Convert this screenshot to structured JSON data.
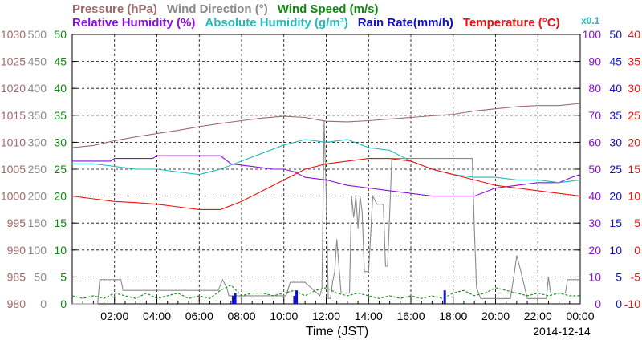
{
  "chart_data": {
    "type": "line",
    "legend_row1": [
      {
        "text": "Pressure (hPa)",
        "color": "#a06a6a"
      },
      {
        "text": "Wind Direction (°)",
        "color": "#8a8a8a"
      },
      {
        "text": "Wind Speed (m/s)",
        "color": "#118811"
      }
    ],
    "legend_row2": [
      {
        "text": "Relative Humidity (%)",
        "color": "#8a0fe0"
      },
      {
        "text": "Absolute Humidity (g/m³)",
        "color": "#22bbbb"
      },
      {
        "text": "Rain Rate(mm/h)",
        "color": "#1111cc"
      },
      {
        "text": "Temperature (°C)",
        "color": "#ee1111"
      }
    ],
    "abs_humidity_scale_note": "x0.1",
    "xlabel": "Time (JST)",
    "date_label": "2014-12-14",
    "x_range_hours": [
      0,
      24
    ],
    "x_tick_labels": [
      "02:00",
      "04:00",
      "06:00",
      "08:00",
      "10:00",
      "12:00",
      "14:00",
      "16:00",
      "18:00",
      "20:00",
      "22:00",
      "00:00"
    ],
    "grid": true,
    "left_axes": [
      {
        "name": "pressure",
        "color": "#a06a6a",
        "ticks": [
          980,
          985,
          990,
          995,
          1000,
          1005,
          1010,
          1015,
          1020,
          1025,
          1030
        ]
      },
      {
        "name": "wind_direction",
        "color": "#8a8a8a",
        "ticks": [
          0,
          50,
          100,
          150,
          200,
          250,
          300,
          350,
          400,
          450,
          500
        ]
      },
      {
        "name": "wind_speed",
        "color": "#118811",
        "ticks": [
          0,
          5,
          10,
          15,
          20,
          25,
          30,
          35,
          40,
          45,
          50
        ]
      }
    ],
    "right_axes": [
      {
        "name": "humidity",
        "color": "#8a0fe0",
        "ticks": [
          0,
          10,
          20,
          30,
          40,
          50,
          60,
          70,
          80,
          90,
          100
        ]
      },
      {
        "name": "rain_rate",
        "color": "#1111cc",
        "ticks": [
          0,
          5,
          10,
          15,
          20,
          25,
          30,
          35,
          40,
          45,
          50
        ]
      },
      {
        "name": "temperature",
        "color": "#ee1111",
        "ticks": [
          -10,
          -5,
          0,
          5,
          10,
          15,
          20,
          25,
          30,
          35,
          40
        ]
      }
    ],
    "series": [
      {
        "name": "Pressure (hPa)",
        "color": "#a06a6a",
        "ylim": [
          980,
          1030
        ],
        "x": [
          0,
          1,
          2,
          3,
          4,
          5,
          6,
          7,
          8,
          9,
          10,
          11,
          12,
          13,
          14,
          15,
          16,
          17,
          18,
          19,
          20,
          21,
          22,
          23,
          24
        ],
        "y": [
          1009.0,
          1009.4,
          1010.3,
          1011.0,
          1011.6,
          1012.2,
          1012.9,
          1013.5,
          1014.0,
          1014.5,
          1014.8,
          1014.6,
          1013.9,
          1013.8,
          1014.0,
          1014.3,
          1014.6,
          1014.9,
          1015.2,
          1015.8,
          1016.2,
          1016.6,
          1016.8,
          1016.8,
          1017.2
        ]
      },
      {
        "name": "Wind Direction (°)",
        "color": "#8a8a8a",
        "ylim": [
          0,
          500
        ],
        "x": [
          0,
          0.2,
          1.2,
          1.3,
          2.3,
          2.4,
          6.9,
          7.1,
          7.3,
          7.4,
          10.1,
          10.3,
          10.5,
          11.0,
          11.7,
          11.8,
          11.9,
          12.0,
          12.1,
          12.15,
          12.2,
          12.3,
          12.4,
          12.5,
          12.7,
          13.1,
          13.2,
          13.3,
          13.4,
          13.5,
          13.6,
          13.7,
          13.8,
          14.0,
          14.2,
          14.4,
          14.7,
          14.8,
          14.9,
          15.1,
          15.3,
          16.0,
          17.0,
          18.0,
          18.9,
          19.0,
          19.1,
          19.3,
          19.5,
          20.0,
          20.7,
          20.9,
          21.0,
          21.2,
          21.5,
          22.0,
          22.4,
          22.5,
          22.6,
          23.3,
          23.4,
          24.0
        ],
        "y": [
          0,
          0,
          0,
          45,
          45,
          25,
          25,
          45,
          30,
          15,
          15,
          40,
          40,
          40,
          15,
          30,
          340,
          200,
          10,
          10,
          10,
          40,
          60,
          120,
          20,
          20,
          200,
          160,
          200,
          140,
          200,
          170,
          60,
          60,
          200,
          185,
          185,
          70,
          70,
          270,
          270,
          270,
          270,
          270,
          270,
          140,
          30,
          10,
          10,
          10,
          10,
          60,
          90,
          60,
          10,
          10,
          10,
          50,
          20,
          20,
          45,
          45
        ]
      },
      {
        "name": "Wind Speed (m/s)",
        "color": "#118811",
        "ylim": [
          0,
          50
        ],
        "x": [
          0,
          0.5,
          1,
          1.5,
          2,
          2.5,
          3,
          3.5,
          4,
          4.5,
          5,
          5.5,
          6,
          6.5,
          7,
          7.5,
          8,
          8.5,
          9,
          9.5,
          10,
          10.5,
          11,
          11.5,
          12,
          12.5,
          13,
          13.5,
          14,
          14.5,
          15,
          15.5,
          16,
          16.5,
          17,
          17.5,
          18,
          18.5,
          19,
          19.5,
          20,
          20.5,
          21,
          21.5,
          22,
          22.5,
          23,
          23.5,
          24
        ],
        "y": [
          1.5,
          1.0,
          1.5,
          1.0,
          2.0,
          1.5,
          1.0,
          2.0,
          1.0,
          1.5,
          2.0,
          1.0,
          1.5,
          1.0,
          2.5,
          3.5,
          1.5,
          2.0,
          2.0,
          1.5,
          2.0,
          2.5,
          1.5,
          2.5,
          3.0,
          2.0,
          1.5,
          2.0,
          1.5,
          1.0,
          1.5,
          1.0,
          1.5,
          1.0,
          1.5,
          1.0,
          2.0,
          2.5,
          1.5,
          2.0,
          3.0,
          2.5,
          2.0,
          1.5,
          2.0,
          1.5,
          2.0,
          1.5,
          1.5
        ]
      },
      {
        "name": "Relative Humidity (%)",
        "color": "#8a0fe0",
        "ylim": [
          0,
          100
        ],
        "x": [
          0,
          1,
          1.8,
          2.0,
          3.8,
          4.0,
          5.0,
          6.0,
          7.0,
          7.5,
          8.5,
          9.5,
          10.0,
          10.5,
          11.0,
          12.0,
          13.0,
          14.0,
          15.0,
          16.0,
          17.0,
          18.0,
          19.0,
          20.0,
          21.0,
          22.0,
          23.0,
          23.6,
          24.0
        ],
        "y": [
          53,
          53,
          53,
          54,
          54,
          55,
          55,
          55,
          55,
          52,
          51,
          50,
          50,
          49,
          47,
          46,
          44,
          43,
          42,
          41,
          40,
          40,
          40,
          43,
          44,
          45,
          45,
          47,
          48
        ]
      },
      {
        "name": "Absolute Humidity (g/m³)",
        "color": "#22bbbb",
        "ylim": [
          0,
          100
        ],
        "x": [
          0,
          1,
          2,
          3,
          4,
          5,
          6,
          7,
          8,
          9,
          10,
          11,
          12,
          13,
          14,
          15,
          16,
          17,
          18,
          19,
          20,
          21,
          22,
          23,
          24
        ],
        "y": [
          52,
          52,
          51,
          50,
          50,
          49,
          48,
          50,
          53,
          56,
          59,
          61,
          60,
          61,
          58,
          57,
          53,
          50,
          48,
          47,
          47,
          46,
          46,
          45,
          46
        ]
      },
      {
        "name": "Rain Rate(mm/h)",
        "color": "#1111cc",
        "ylim": [
          0,
          50
        ],
        "x": [
          7.6,
          7.7,
          10.5,
          10.6,
          17.6
        ],
        "y": [
          1.5,
          2.0,
          1.5,
          2.5,
          2.5
        ]
      },
      {
        "name": "Temperature (°C)",
        "color": "#ee1111",
        "ylim": [
          -10,
          40
        ],
        "x": [
          0,
          1,
          2,
          3,
          4,
          5,
          6,
          7,
          8,
          9,
          10,
          11,
          12,
          13,
          14,
          15,
          16,
          17,
          18,
          19,
          20,
          21,
          22,
          23,
          24
        ],
        "y": [
          10.0,
          9.5,
          9.0,
          8.8,
          8.5,
          8.0,
          7.5,
          7.5,
          9.0,
          11.0,
          13.0,
          15.0,
          16.0,
          16.5,
          17.0,
          17.0,
          16.5,
          15.0,
          14.0,
          13.0,
          12.0,
          11.5,
          11.0,
          10.5,
          10.0
        ]
      }
    ]
  }
}
